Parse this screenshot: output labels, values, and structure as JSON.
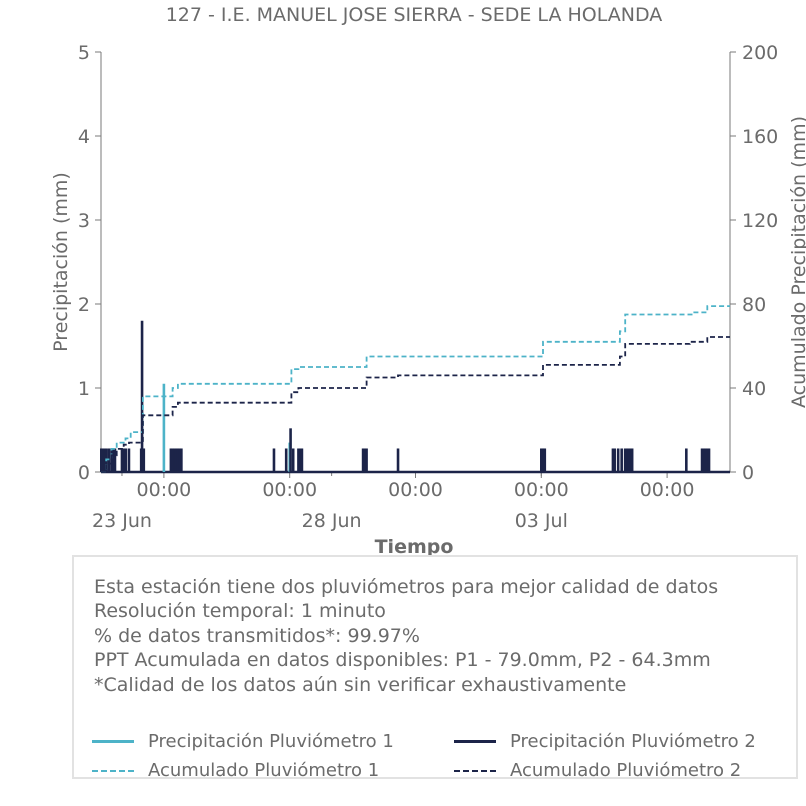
{
  "chart_data": {
    "type": "line",
    "title": "127 - I.E. MANUEL JOSE SIERRA - SEDE LA HOLANDA",
    "xlabel": "Tiempo",
    "ylabel_left": "Precipitación (mm)",
    "ylabel_right": "Acumulado Precipitación (mm)",
    "ylim_left": [
      0,
      5
    ],
    "ylim_right": [
      0,
      200
    ],
    "yticks_left": [
      "0",
      "1",
      "2",
      "3",
      "4",
      "5"
    ],
    "yticks_right": [
      "0",
      "40",
      "80",
      "120",
      "160",
      "200"
    ],
    "xlim": [
      "2025-06-22T12:00",
      "2025-07-07T12:00"
    ],
    "xticks_major": [
      {
        "t": "2025-06-24T00:00",
        "label": "00:00"
      },
      {
        "t": "2025-06-27T00:00",
        "label": "00:00"
      },
      {
        "t": "2025-06-30T00:00",
        "label": "00:00"
      },
      {
        "t": "2025-07-03T00:00",
        "label": "00:00"
      },
      {
        "t": "2025-07-06T00:00",
        "label": "00:00"
      }
    ],
    "xticks_minor": [
      {
        "t": "2025-06-23T00:00",
        "label": "23 Jun"
      },
      {
        "t": "2025-06-28T00:00",
        "label": "28 Jun"
      },
      {
        "t": "2025-07-03T00:00",
        "label": "03 Jul"
      }
    ],
    "series": [
      {
        "name": "Precipitación Pluviómetro 1",
        "axis": "left",
        "style": "solid",
        "color": "#4db3c8",
        "points": [
          [
            "2025-06-24T00:00",
            1.05
          ],
          [
            "2025-06-27T00:00",
            0.35
          ]
        ]
      },
      {
        "name": "Precipitación Pluviómetro 2",
        "axis": "left",
        "style": "solid",
        "color": "#1c2449",
        "points": [
          [
            "2025-06-22T12:10",
            0.28
          ],
          [
            "2025-06-22T13:00",
            0.28
          ],
          [
            "2025-06-22T14:00",
            0.28
          ],
          [
            "2025-06-22T15:00",
            0.28
          ],
          [
            "2025-06-22T16:30",
            0.28
          ],
          [
            "2025-06-22T18:00",
            0.28
          ],
          [
            "2025-06-22T19:00",
            0.28
          ],
          [
            "2025-06-22T20:00",
            0.28
          ],
          [
            "2025-06-23T00:00",
            0.28
          ],
          [
            "2025-06-23T00:40",
            0.28
          ],
          [
            "2025-06-23T01:30",
            0.28
          ],
          [
            "2025-06-23T02:10",
            0.28
          ],
          [
            "2025-06-23T04:00",
            0.28
          ],
          [
            "2025-06-23T11:00",
            0.28
          ],
          [
            "2025-06-23T11:30",
            1.8
          ],
          [
            "2025-06-23T12:00",
            0.28
          ],
          [
            "2025-06-23T12:30",
            0.28
          ],
          [
            "2025-06-24T04:00",
            0.28
          ],
          [
            "2025-06-24T05:00",
            0.28
          ],
          [
            "2025-06-24T06:00",
            0.28
          ],
          [
            "2025-06-24T07:00",
            0.28
          ],
          [
            "2025-06-24T08:00",
            0.28
          ],
          [
            "2025-06-24T09:00",
            0.28
          ],
          [
            "2025-06-24T10:00",
            0.28
          ],
          [
            "2025-06-26T15:00",
            0.28
          ],
          [
            "2025-06-26T22:00",
            0.28
          ],
          [
            "2025-06-27T00:30",
            0.52
          ],
          [
            "2025-06-27T02:00",
            0.28
          ],
          [
            "2025-06-27T05:00",
            0.28
          ],
          [
            "2025-06-27T06:00",
            0.28
          ],
          [
            "2025-06-27T07:00",
            0.28
          ],
          [
            "2025-06-28T18:00",
            0.28
          ],
          [
            "2025-06-28T19:00",
            0.28
          ],
          [
            "2025-06-28T20:00",
            0.28
          ],
          [
            "2025-06-29T14:00",
            0.28
          ],
          [
            "2025-07-03T00:00",
            0.28
          ],
          [
            "2025-07-03T00:30",
            0.28
          ],
          [
            "2025-07-03T01:00",
            0.28
          ],
          [
            "2025-07-03T01:30",
            0.28
          ],
          [
            "2025-07-03T02:00",
            0.28
          ],
          [
            "2025-07-04T17:00",
            0.28
          ],
          [
            "2025-07-04T18:00",
            0.28
          ],
          [
            "2025-07-04T20:00",
            0.28
          ],
          [
            "2025-07-04T22:00",
            0.28
          ],
          [
            "2025-07-05T00:00",
            0.28
          ],
          [
            "2025-07-05T01:00",
            0.28
          ],
          [
            "2025-07-05T02:00",
            0.28
          ],
          [
            "2025-07-05T03:00",
            0.28
          ],
          [
            "2025-07-05T04:00",
            0.28
          ],
          [
            "2025-07-06T11:00",
            0.28
          ],
          [
            "2025-07-06T20:00",
            0.28
          ],
          [
            "2025-07-06T21:00",
            0.28
          ],
          [
            "2025-07-06T22:00",
            0.28
          ],
          [
            "2025-07-06T23:00",
            0.28
          ],
          [
            "2025-07-07T00:00",
            0.28
          ]
        ]
      },
      {
        "name": "Acumulado Pluviómetro 1",
        "axis": "right",
        "style": "dashed",
        "color": "#4db3c8",
        "points": [
          [
            "2025-06-22T12:00",
            0
          ],
          [
            "2025-06-22T15:00",
            6
          ],
          [
            "2025-06-22T18:00",
            11
          ],
          [
            "2025-06-22T21:00",
            14
          ],
          [
            "2025-06-23T02:00",
            16
          ],
          [
            "2025-06-23T05:00",
            19
          ],
          [
            "2025-06-23T11:00",
            19
          ],
          [
            "2025-06-23T12:00",
            36
          ],
          [
            "2025-06-24T03:00",
            36
          ],
          [
            "2025-06-24T05:00",
            40
          ],
          [
            "2025-06-24T08:00",
            42
          ],
          [
            "2025-06-26T23:00",
            42
          ],
          [
            "2025-06-27T01:00",
            49
          ],
          [
            "2025-06-27T05:00",
            50
          ],
          [
            "2025-06-28T18:00",
            50
          ],
          [
            "2025-06-28T20:00",
            55
          ],
          [
            "2025-07-02T23:00",
            55
          ],
          [
            "2025-07-03T01:00",
            62
          ],
          [
            "2025-07-04T18:00",
            62
          ],
          [
            "2025-07-04T21:00",
            67
          ],
          [
            "2025-07-05T00:00",
            75
          ],
          [
            "2025-07-06T12:00",
            75
          ],
          [
            "2025-07-06T15:00",
            76
          ],
          [
            "2025-07-06T20:00",
            76
          ],
          [
            "2025-07-06T23:00",
            79
          ],
          [
            "2025-07-07T12:00",
            79
          ]
        ]
      },
      {
        "name": "Acumulado Pluviómetro 2",
        "axis": "right",
        "style": "dashed",
        "color": "#1c2449",
        "points": [
          [
            "2025-06-22T12:00",
            0
          ],
          [
            "2025-06-22T15:00",
            4
          ],
          [
            "2025-06-22T18:00",
            8
          ],
          [
            "2025-06-22T21:00",
            11
          ],
          [
            "2025-06-23T01:00",
            13
          ],
          [
            "2025-06-23T04:00",
            14
          ],
          [
            "2025-06-23T11:00",
            14
          ],
          [
            "2025-06-23T12:00",
            27
          ],
          [
            "2025-06-24T03:00",
            27
          ],
          [
            "2025-06-24T05:00",
            31
          ],
          [
            "2025-06-24T08:00",
            33
          ],
          [
            "2025-06-26T23:00",
            33
          ],
          [
            "2025-06-27T01:00",
            38
          ],
          [
            "2025-06-27T05:00",
            40
          ],
          [
            "2025-06-28T18:00",
            40
          ],
          [
            "2025-06-28T20:00",
            45
          ],
          [
            "2025-06-29T14:00",
            46
          ],
          [
            "2025-07-02T23:00",
            46
          ],
          [
            "2025-07-03T01:00",
            51
          ],
          [
            "2025-07-04T18:00",
            51
          ],
          [
            "2025-07-04T21:00",
            55
          ],
          [
            "2025-07-05T00:00",
            61
          ],
          [
            "2025-07-06T11:00",
            61
          ],
          [
            "2025-07-06T13:00",
            62
          ],
          [
            "2025-07-06T20:00",
            62
          ],
          [
            "2025-07-06T23:00",
            64.3
          ],
          [
            "2025-07-07T12:00",
            64.3
          ]
        ]
      }
    ],
    "legend_placement": "bottom"
  },
  "info": {
    "line1": "Esta estación tiene dos pluviómetros para mejor calidad de datos",
    "line2": "Resolución temporal: 1 minuto",
    "line3": "% de datos transmitidos*: 99.97%",
    "line4": "PPT Acumulada en datos disponibles: P1 - 79.0mm, P2 - 64.3mm",
    "line5": "*Calidad de los datos aún sin verificar exhaustivamente"
  },
  "legend": {
    "items": [
      {
        "label": "Precipitación Pluviómetro 1",
        "color": "#4db3c8",
        "style": "solid"
      },
      {
        "label": "Precipitación Pluviómetro 2",
        "color": "#1c2449",
        "style": "solid"
      },
      {
        "label": "Acumulado Pluviómetro 1",
        "color": "#4db3c8",
        "style": "dashed"
      },
      {
        "label": "Acumulado Pluviómetro 2",
        "color": "#1c2449",
        "style": "dashed"
      }
    ]
  }
}
